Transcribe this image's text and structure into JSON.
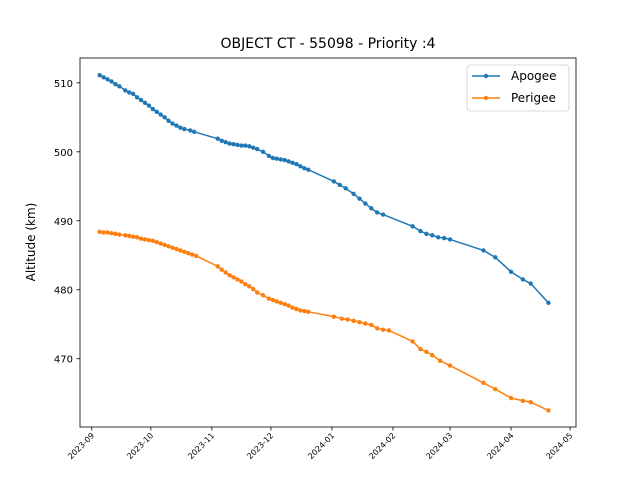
{
  "chart_data": {
    "type": "line",
    "title": "OBJECT CT - 55098 - Priority :4",
    "xlabel": "",
    "ylabel": "Altitude (km)",
    "x_ticks": [
      "2023-09",
      "2023-10",
      "2023-11",
      "2023-12",
      "2024-01",
      "2024-02",
      "2024-03",
      "2024-04",
      "2024-05"
    ],
    "y_ticks": [
      470,
      480,
      490,
      500,
      510
    ],
    "xlim": [
      "2023-08-26",
      "2024-05-04"
    ],
    "ylim": [
      460.1,
      513.6
    ],
    "legend": "top-right",
    "grid": false,
    "series": [
      {
        "name": "Apogee",
        "color": "#1f77b4",
        "points": [
          [
            "2023-09-05",
            511.1
          ],
          [
            "2023-09-07",
            510.8
          ],
          [
            "2023-09-09",
            510.5
          ],
          [
            "2023-09-11",
            510.2
          ],
          [
            "2023-09-13",
            509.8
          ],
          [
            "2023-09-15",
            509.5
          ],
          [
            "2023-09-18",
            508.9
          ],
          [
            "2023-09-20",
            508.6
          ],
          [
            "2023-09-22",
            508.4
          ],
          [
            "2023-09-24",
            507.9
          ],
          [
            "2023-09-26",
            507.5
          ],
          [
            "2023-09-28",
            507.1
          ],
          [
            "2023-09-30",
            506.7
          ],
          [
            "2023-10-02",
            506.2
          ],
          [
            "2023-10-04",
            505.8
          ],
          [
            "2023-10-06",
            505.4
          ],
          [
            "2023-10-08",
            505.0
          ],
          [
            "2023-10-10",
            504.5
          ],
          [
            "2023-10-12",
            504.1
          ],
          [
            "2023-10-14",
            503.8
          ],
          [
            "2023-10-16",
            503.5
          ],
          [
            "2023-10-18",
            503.3
          ],
          [
            "2023-10-21",
            503.1
          ],
          [
            "2023-10-23",
            502.9
          ],
          [
            "2023-11-04",
            501.9
          ],
          [
            "2023-11-06",
            501.6
          ],
          [
            "2023-11-08",
            501.4
          ],
          [
            "2023-11-10",
            501.2
          ],
          [
            "2023-11-12",
            501.1
          ],
          [
            "2023-11-14",
            501.0
          ],
          [
            "2023-11-16",
            500.9
          ],
          [
            "2023-11-18",
            500.9
          ],
          [
            "2023-11-20",
            500.8
          ],
          [
            "2023-11-22",
            500.6
          ],
          [
            "2023-11-24",
            500.4
          ],
          [
            "2023-11-27",
            500.0
          ],
          [
            "2023-11-30",
            499.4
          ],
          [
            "2023-12-02",
            499.1
          ],
          [
            "2023-12-04",
            499.0
          ],
          [
            "2023-12-06",
            498.9
          ],
          [
            "2023-12-08",
            498.8
          ],
          [
            "2023-12-10",
            498.6
          ],
          [
            "2023-12-12",
            498.4
          ],
          [
            "2023-12-14",
            498.2
          ],
          [
            "2023-12-16",
            497.9
          ],
          [
            "2023-12-18",
            497.6
          ],
          [
            "2023-12-20",
            497.4
          ],
          [
            "2024-01-02",
            495.7
          ],
          [
            "2024-01-05",
            495.2
          ],
          [
            "2024-01-08",
            494.7
          ],
          [
            "2024-01-12",
            493.9
          ],
          [
            "2024-01-15",
            493.2
          ],
          [
            "2024-01-18",
            492.5
          ],
          [
            "2024-01-21",
            491.8
          ],
          [
            "2024-01-24",
            491.2
          ],
          [
            "2024-01-27",
            490.9
          ],
          [
            "2024-02-11",
            489.2
          ],
          [
            "2024-02-15",
            488.5
          ],
          [
            "2024-02-18",
            488.1
          ],
          [
            "2024-02-21",
            487.9
          ],
          [
            "2024-02-24",
            487.6
          ],
          [
            "2024-02-27",
            487.5
          ],
          [
            "2024-03-01",
            487.3
          ],
          [
            "2024-03-18",
            485.7
          ],
          [
            "2024-03-24",
            484.7
          ],
          [
            "2024-04-01",
            482.6
          ],
          [
            "2024-04-07",
            481.5
          ],
          [
            "2024-04-11",
            480.9
          ],
          [
            "2024-04-20",
            478.1
          ]
        ]
      },
      {
        "name": "Perigee",
        "color": "#ff7f0e",
        "points": [
          [
            "2023-09-05",
            488.4
          ],
          [
            "2023-09-07",
            488.3
          ],
          [
            "2023-09-09",
            488.3
          ],
          [
            "2023-09-11",
            488.2
          ],
          [
            "2023-09-13",
            488.1
          ],
          [
            "2023-09-15",
            488.0
          ],
          [
            "2023-09-18",
            487.9
          ],
          [
            "2023-09-20",
            487.8
          ],
          [
            "2023-09-22",
            487.7
          ],
          [
            "2023-09-24",
            487.6
          ],
          [
            "2023-09-26",
            487.4
          ],
          [
            "2023-09-28",
            487.3
          ],
          [
            "2023-09-30",
            487.2
          ],
          [
            "2023-10-02",
            487.1
          ],
          [
            "2023-10-04",
            486.9
          ],
          [
            "2023-10-06",
            486.7
          ],
          [
            "2023-10-08",
            486.5
          ],
          [
            "2023-10-10",
            486.3
          ],
          [
            "2023-10-12",
            486.1
          ],
          [
            "2023-10-14",
            485.9
          ],
          [
            "2023-10-16",
            485.7
          ],
          [
            "2023-10-18",
            485.5
          ],
          [
            "2023-10-20",
            485.3
          ],
          [
            "2023-10-22",
            485.1
          ],
          [
            "2023-10-24",
            484.9
          ],
          [
            "2023-11-04",
            483.4
          ],
          [
            "2023-11-06",
            482.9
          ],
          [
            "2023-11-08",
            482.5
          ],
          [
            "2023-11-10",
            482.1
          ],
          [
            "2023-11-12",
            481.8
          ],
          [
            "2023-11-14",
            481.5
          ],
          [
            "2023-11-16",
            481.2
          ],
          [
            "2023-11-18",
            480.8
          ],
          [
            "2023-11-20",
            480.5
          ],
          [
            "2023-11-22",
            480.1
          ],
          [
            "2023-11-24",
            479.6
          ],
          [
            "2023-11-27",
            479.2
          ],
          [
            "2023-11-30",
            478.7
          ],
          [
            "2023-12-02",
            478.5
          ],
          [
            "2023-12-04",
            478.3
          ],
          [
            "2023-12-06",
            478.1
          ],
          [
            "2023-12-08",
            477.9
          ],
          [
            "2023-12-10",
            477.7
          ],
          [
            "2023-12-12",
            477.4
          ],
          [
            "2023-12-14",
            477.2
          ],
          [
            "2023-12-16",
            477.0
          ],
          [
            "2023-12-18",
            476.9
          ],
          [
            "2023-12-20",
            476.8
          ],
          [
            "2024-01-02",
            476.1
          ],
          [
            "2024-01-06",
            475.8
          ],
          [
            "2024-01-09",
            475.7
          ],
          [
            "2024-01-12",
            475.5
          ],
          [
            "2024-01-15",
            475.3
          ],
          [
            "2024-01-18",
            475.1
          ],
          [
            "2024-01-21",
            474.9
          ],
          [
            "2024-01-24",
            474.4
          ],
          [
            "2024-01-27",
            474.2
          ],
          [
            "2024-01-30",
            474.1
          ],
          [
            "2024-02-11",
            472.5
          ],
          [
            "2024-02-15",
            471.4
          ],
          [
            "2024-02-18",
            471.0
          ],
          [
            "2024-02-21",
            470.5
          ],
          [
            "2024-02-25",
            469.7
          ],
          [
            "2024-03-01",
            469.0
          ],
          [
            "2024-03-18",
            466.5
          ],
          [
            "2024-03-24",
            465.6
          ],
          [
            "2024-04-01",
            464.3
          ],
          [
            "2024-04-07",
            463.9
          ],
          [
            "2024-04-11",
            463.7
          ],
          [
            "2024-04-20",
            462.5
          ]
        ]
      }
    ]
  }
}
